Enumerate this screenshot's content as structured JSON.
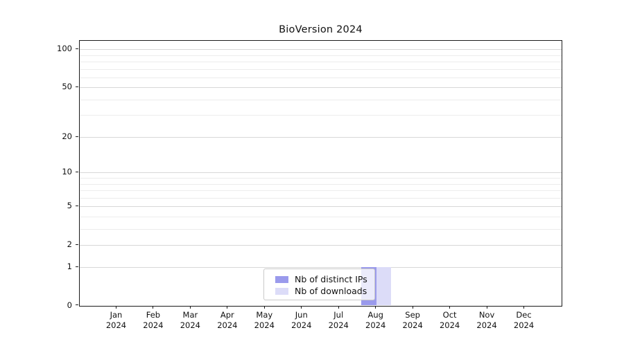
{
  "chart_data": {
    "type": "bar",
    "title": "BioVersion 2024",
    "categories": [
      "Jan 2024",
      "Feb 2024",
      "Mar 2024",
      "Apr 2024",
      "May 2024",
      "Jun 2024",
      "Jul 2024",
      "Aug 2024",
      "Sep 2024",
      "Oct 2024",
      "Nov 2024",
      "Dec 2024"
    ],
    "series": [
      {
        "name": "Nb of distinct IPs",
        "color": "#9a9aec",
        "values": [
          0,
          0,
          0,
          0,
          0,
          0,
          0,
          1,
          0,
          0,
          0,
          0
        ]
      },
      {
        "name": "Nb of downloads",
        "color": "#dcdcf8",
        "values": [
          0,
          0,
          0,
          0,
          0,
          0,
          0,
          1,
          0,
          0,
          0,
          0
        ]
      }
    ],
    "xlabel": "",
    "ylabel": "",
    "yscale": "log10(1+y)",
    "ylim": [
      0,
      117
    ],
    "yticks": [
      0,
      1,
      2,
      5,
      10,
      20,
      50,
      100
    ],
    "minor_yticks": [
      3,
      4,
      6,
      7,
      8,
      9,
      30,
      40,
      60,
      70,
      80,
      90
    ],
    "grid": "horizontal major+minor",
    "legend_position": "lower center inside plot",
    "bar_width_fraction": 0.4
  },
  "colors": {
    "major_grid": "#d7d7d7",
    "minor_grid": "#ececec",
    "spine": "#1a1a1a",
    "legend_border": "#c9c9c9"
  }
}
